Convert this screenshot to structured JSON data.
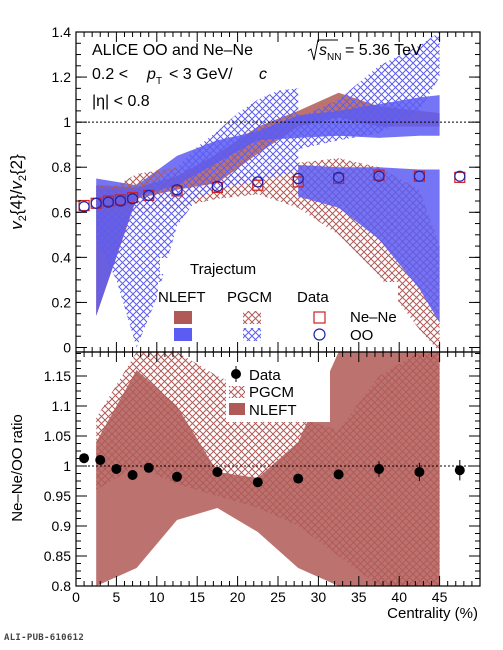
{
  "figure_id": "ALI-PUB-610612",
  "annotations": {
    "system": "ALICE OO and Ne–Ne",
    "energy_sqrt": "s",
    "energy_sub": "NN",
    "energy_value": "= 5.36 TeV",
    "pt_prefix": "0.2 <",
    "pt_var": "p",
    "pt_sub": "T",
    "pt_suffix": "< 3 GeV/",
    "pt_unit_c": "c",
    "eta_cut": "|η| < 0.8"
  },
  "legend_top": {
    "header": "Trajectum",
    "col_nleft": "NLEFT",
    "col_pgcm": "PGCM",
    "col_data": "Data",
    "row_nene": "Ne–Ne",
    "row_oo": "OO"
  },
  "legend_bottom": {
    "data": "Data",
    "pgcm": "PGCM",
    "nleft": "NLEFT"
  },
  "colors": {
    "nene": "#b05a57",
    "oo": "#5c5cf2",
    "nene_marker": "#cc2222",
    "oo_marker": "#2222aa",
    "data": "#000000"
  },
  "chart_data": [
    {
      "type": "area",
      "panel": "top",
      "ylabel_parts": [
        "v",
        "2",
        "{4}/",
        "v",
        "2",
        "{2}"
      ],
      "ylim": [
        -0.02,
        1.4
      ],
      "xlim": [
        0,
        50
      ],
      "yticks": [
        0,
        0.2,
        0.4,
        0.6,
        0.8,
        1,
        1.2,
        1.4
      ],
      "ytick_labels": [
        "0",
        "0.2",
        "0.4",
        "0.6",
        "0.8",
        "1",
        "1.2",
        "1.4"
      ],
      "reference_line": 1,
      "series": [
        {
          "name": "NLEFT Ne–Ne",
          "style": "band",
          "color": "nene",
          "x": [
            2.5,
            7.5,
            12.5,
            17.5,
            22.5,
            27.5,
            32.5,
            37.5,
            42.5,
            45
          ],
          "lower": [
            0.14,
            0.66,
            0.7,
            0.73,
            0.86,
            0.98,
            1.02,
            0.98,
            0.98,
            0.98
          ],
          "upper": [
            0.72,
            0.71,
            0.76,
            0.86,
            0.98,
            1.05,
            1.13,
            1.07,
            1.05,
            1.04
          ]
        },
        {
          "name": "NLEFT OO",
          "style": "band",
          "color": "oo",
          "x": [
            2.5,
            7.5,
            12.5,
            17.5,
            22.5,
            27.5,
            32.5,
            37.5,
            42.5,
            45
          ],
          "lower": [
            0.14,
            0.67,
            0.72,
            0.82,
            0.92,
            0.93,
            0.94,
            0.93,
            0.94,
            0.94
          ],
          "upper": [
            0.75,
            0.72,
            0.85,
            0.92,
            0.96,
            1.03,
            1.05,
            1.08,
            1.11,
            1.12
          ]
        },
        {
          "name": "PGCM Ne–Ne",
          "style": "hatch",
          "color": "nene",
          "x": [
            2.5,
            5,
            7.5,
            12.5,
            17.5,
            22.5,
            27.5,
            32.5,
            37.5,
            42.5,
            45
          ],
          "lower": [
            0.6,
            0.59,
            0.59,
            0.62,
            0.66,
            0.68,
            0.62,
            0.5,
            0.32,
            0.08,
            -0.02
          ],
          "upper": [
            0.72,
            0.72,
            0.77,
            0.8,
            0.76,
            0.78,
            0.82,
            0.84,
            0.8,
            0.7,
            0.45
          ]
        },
        {
          "name": "PGCM OO",
          "style": "hatch",
          "color": "oo",
          "x": [
            2.5,
            5,
            7.5,
            10,
            12.5,
            15,
            17.5,
            20,
            22.5,
            25,
            27.5
          ],
          "lower": [
            0.48,
            0.3,
            0.0,
            0.22,
            0.54,
            0.66,
            0.7,
            0.72,
            0.74,
            0.76,
            0.78
          ],
          "upper": [
            0.71,
            0.7,
            0.7,
            0.74,
            0.8,
            0.89,
            0.96,
            1.04,
            1.1,
            1.14,
            1.15
          ]
        },
        {
          "name": "PGCM OO",
          "style": "hatch",
          "color": "oo",
          "x": [
            27.5,
            32.5,
            37.5,
            42.5,
            45
          ],
          "lower": [
            0.88,
            0.92,
            0.95,
            1.05,
            1.2
          ],
          "upper": [
            1.02,
            1.1,
            1.25,
            1.34,
            1.4
          ]
        },
        {
          "name": "OO band low",
          "style": "band",
          "color": "oo",
          "x": [
            27.5,
            32.5,
            37.5,
            42.5,
            45
          ],
          "lower": [
            0.67,
            0.62,
            0.48,
            0.26,
            0.11
          ],
          "upper": [
            0.81,
            0.8,
            0.8,
            0.79,
            0.79
          ]
        },
        {
          "name": "Data Ne–Ne",
          "style": "marker",
          "marker": "square",
          "color": "nene_marker",
          "x": [
            1,
            2.5,
            4,
            5.5,
            7,
            9,
            12.5,
            17.5,
            22.5,
            27.5,
            32.5,
            37.5,
            42.5,
            47.5
          ],
          "y": [
            0.63,
            0.64,
            0.65,
            0.655,
            0.665,
            0.675,
            0.695,
            0.71,
            0.72,
            0.735,
            0.75,
            0.765,
            0.76,
            0.755
          ]
        },
        {
          "name": "Data OO",
          "style": "marker",
          "marker": "circle",
          "color": "oo_marker",
          "x": [
            1,
            2.5,
            4,
            5.5,
            7,
            9,
            12.5,
            17.5,
            22.5,
            27.5,
            32.5,
            37.5,
            42.5,
            47.5
          ],
          "y": [
            0.625,
            0.64,
            0.645,
            0.65,
            0.66,
            0.675,
            0.7,
            0.715,
            0.735,
            0.75,
            0.755,
            0.76,
            0.76,
            0.76
          ]
        }
      ]
    },
    {
      "type": "area",
      "panel": "bottom",
      "ylabel": "Ne–Ne/OO ratio",
      "xlabel": "Centrality (%)",
      "ylim": [
        0.8,
        1.19
      ],
      "xlim": [
        0,
        50
      ],
      "yticks": [
        0.8,
        0.85,
        0.9,
        0.95,
        1,
        1.05,
        1.1,
        1.15
      ],
      "ytick_labels": [
        "0.8",
        "0.85",
        "0.9",
        "0.95",
        "1",
        "1.05",
        "1.1",
        "1.15"
      ],
      "xticks": [
        0,
        5,
        10,
        15,
        20,
        25,
        30,
        35,
        40,
        45
      ],
      "xtick_labels": [
        "0",
        "5",
        "10",
        "15",
        "20",
        "25",
        "30",
        "35",
        "40",
        "45"
      ],
      "reference_line": 1,
      "series": [
        {
          "name": "PGCM",
          "style": "hatch",
          "color": "nene",
          "x": [
            2.5,
            7.5,
            12.5,
            17.5,
            22.5,
            27.5,
            32.5,
            37.5,
            42.5,
            45
          ],
          "lower": [
            0.96,
            1.0,
            0.97,
            0.95,
            0.93,
            0.9,
            0.85,
            0.8,
            0.8,
            0.8
          ],
          "upper": [
            1.08,
            1.19,
            1.19,
            1.15,
            1.12,
            1.08,
            1.06,
            1.15,
            1.19,
            1.19
          ]
        },
        {
          "name": "NLEFT",
          "style": "band",
          "color": "nene",
          "x": [
            2.5,
            7.5,
            12.5,
            17.5,
            22.5,
            27.5,
            32.5,
            37.5,
            42.5,
            45
          ],
          "lower": [
            0.8,
            0.83,
            0.91,
            0.93,
            0.89,
            0.83,
            0.8,
            0.8,
            0.8,
            0.8
          ],
          "upper": [
            1.04,
            1.16,
            1.1,
            0.99,
            0.98,
            1.04,
            1.19,
            1.19,
            1.19,
            1.19
          ]
        },
        {
          "name": "Data",
          "style": "marker",
          "marker": "filled-circle",
          "color": "data",
          "x": [
            1,
            3,
            5,
            7,
            9,
            12.5,
            17.5,
            22.5,
            27.5,
            32.5,
            37.5,
            42.5,
            47.5
          ],
          "y": [
            1.013,
            1.01,
            0.995,
            0.985,
            0.997,
            0.982,
            0.99,
            0.973,
            0.979,
            0.986,
            0.995,
            0.99,
            0.993
          ],
          "err": [
            0.008,
            0.008,
            0.008,
            0.008,
            0.008,
            0.008,
            0.008,
            0.008,
            0.008,
            0.008,
            0.013,
            0.015,
            0.017
          ]
        }
      ]
    }
  ]
}
